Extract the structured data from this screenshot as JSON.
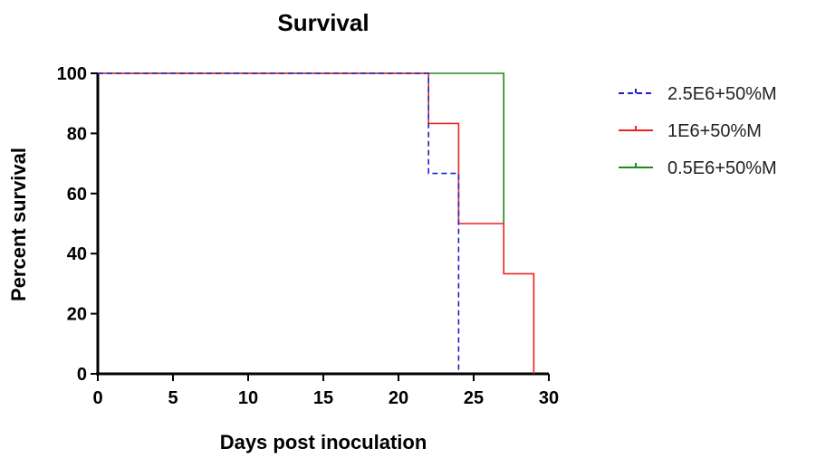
{
  "chart_data": {
    "type": "line",
    "subtype": "kaplan-meier-step",
    "title": "Survival",
    "xlabel": "Days post inoculation",
    "ylabel": "Percent survival",
    "xlim": [
      0,
      30
    ],
    "ylim": [
      0,
      100
    ],
    "x_ticks": [
      0,
      5,
      10,
      15,
      20,
      25,
      30
    ],
    "y_ticks": [
      0,
      20,
      40,
      60,
      80,
      100
    ],
    "grid": false,
    "legend_position": "right",
    "series": [
      {
        "name": "2.5E6+50%M",
        "color": "#1f1fcc",
        "line_style": "dashed",
        "steps": [
          [
            0,
            100
          ],
          [
            22,
            100
          ],
          [
            22,
            66.7
          ],
          [
            24,
            66.7
          ],
          [
            24,
            0
          ]
        ]
      },
      {
        "name": "1E6+50%M",
        "color": "#ee2222",
        "line_style": "solid",
        "steps": [
          [
            0,
            100
          ],
          [
            22,
            100
          ],
          [
            22,
            83.3
          ],
          [
            24,
            83.3
          ],
          [
            24,
            50
          ],
          [
            27,
            50
          ],
          [
            27,
            33.3
          ],
          [
            29,
            33.3
          ],
          [
            29,
            0
          ]
        ]
      },
      {
        "name": "0.5E6+50%M",
        "color": "#1e8c1e",
        "line_style": "solid",
        "steps": [
          [
            0,
            100
          ],
          [
            27,
            100
          ],
          [
            27,
            50
          ]
        ]
      }
    ]
  }
}
